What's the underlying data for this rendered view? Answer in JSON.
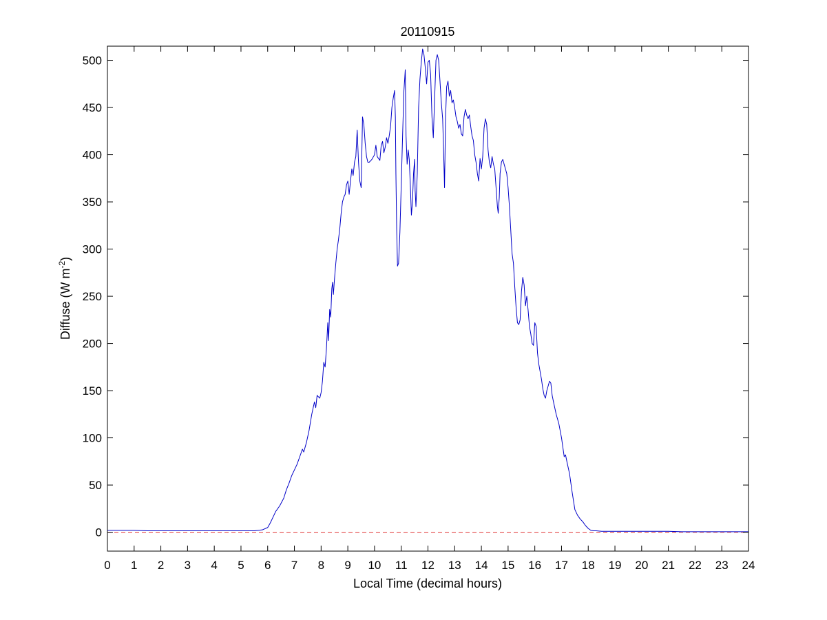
{
  "chart_data": {
    "type": "line",
    "title": "20110915",
    "xlabel": "Local Time (decimal hours)",
    "ylabel": {
      "text": "Diffuse (W m",
      "superscript": "-2",
      "suffix": ")"
    },
    "xlim": [
      0,
      24
    ],
    "ylim": [
      -20,
      515
    ],
    "xticks": [
      0,
      1,
      2,
      3,
      4,
      5,
      6,
      7,
      8,
      9,
      10,
      11,
      12,
      13,
      14,
      15,
      16,
      17,
      18,
      19,
      20,
      21,
      22,
      23,
      24
    ],
    "yticks": [
      0,
      50,
      100,
      150,
      200,
      250,
      300,
      350,
      400,
      450,
      500
    ],
    "grid": false,
    "legend": "none",
    "reference_line": {
      "y": 0,
      "style": "dashed",
      "color": "#e03030"
    },
    "series": [
      {
        "color": "#0000c8",
        "points": [
          [
            0.0,
            2
          ],
          [
            0.5,
            2
          ],
          [
            1.0,
            2
          ],
          [
            1.5,
            1.5
          ],
          [
            2.0,
            1.5
          ],
          [
            2.5,
            1.5
          ],
          [
            3.0,
            1.5
          ],
          [
            3.5,
            1.5
          ],
          [
            4.0,
            1.5
          ],
          [
            4.5,
            1.5
          ],
          [
            5.0,
            1.5
          ],
          [
            5.5,
            1.5
          ],
          [
            5.8,
            2.5
          ],
          [
            6.0,
            5
          ],
          [
            6.1,
            10
          ],
          [
            6.2,
            16
          ],
          [
            6.3,
            22
          ],
          [
            6.45,
            28
          ],
          [
            6.6,
            36
          ],
          [
            6.7,
            45
          ],
          [
            6.8,
            52
          ],
          [
            6.9,
            60
          ],
          [
            7.0,
            66
          ],
          [
            7.1,
            72
          ],
          [
            7.2,
            80
          ],
          [
            7.3,
            88
          ],
          [
            7.35,
            85
          ],
          [
            7.45,
            95
          ],
          [
            7.55,
            108
          ],
          [
            7.65,
            125
          ],
          [
            7.75,
            138
          ],
          [
            7.8,
            132
          ],
          [
            7.85,
            145
          ],
          [
            7.95,
            142
          ],
          [
            8.0,
            148
          ],
          [
            8.05,
            160
          ],
          [
            8.1,
            180
          ],
          [
            8.15,
            175
          ],
          [
            8.2,
            195
          ],
          [
            8.25,
            222
          ],
          [
            8.28,
            203
          ],
          [
            8.32,
            236
          ],
          [
            8.36,
            228
          ],
          [
            8.4,
            258
          ],
          [
            8.43,
            265
          ],
          [
            8.46,
            252
          ],
          [
            8.5,
            268
          ],
          [
            8.55,
            285
          ],
          [
            8.6,
            300
          ],
          [
            8.65,
            310
          ],
          [
            8.7,
            322
          ],
          [
            8.75,
            338
          ],
          [
            8.8,
            350
          ],
          [
            8.85,
            355
          ],
          [
            8.9,
            358
          ],
          [
            8.95,
            368
          ],
          [
            9.0,
            372
          ],
          [
            9.05,
            358
          ],
          [
            9.1,
            372
          ],
          [
            9.15,
            385
          ],
          [
            9.2,
            378
          ],
          [
            9.25,
            392
          ],
          [
            9.3,
            398
          ],
          [
            9.35,
            426
          ],
          [
            9.4,
            392
          ],
          [
            9.45,
            372
          ],
          [
            9.5,
            365
          ],
          [
            9.55,
            440
          ],
          [
            9.6,
            432
          ],
          [
            9.65,
            412
          ],
          [
            9.7,
            398
          ],
          [
            9.75,
            392
          ],
          [
            9.8,
            392
          ],
          [
            9.9,
            395
          ],
          [
            10.0,
            400
          ],
          [
            10.05,
            410
          ],
          [
            10.1,
            398
          ],
          [
            10.2,
            394
          ],
          [
            10.25,
            410
          ],
          [
            10.3,
            414
          ],
          [
            10.35,
            402
          ],
          [
            10.4,
            408
          ],
          [
            10.45,
            418
          ],
          [
            10.5,
            412
          ],
          [
            10.55,
            420
          ],
          [
            10.6,
            430
          ],
          [
            10.65,
            450
          ],
          [
            10.7,
            460
          ],
          [
            10.75,
            468
          ],
          [
            10.78,
            440
          ],
          [
            10.8,
            380
          ],
          [
            10.83,
            320
          ],
          [
            10.86,
            282
          ],
          [
            10.9,
            285
          ],
          [
            10.95,
            318
          ],
          [
            11.0,
            368
          ],
          [
            11.05,
            420
          ],
          [
            11.1,
            468
          ],
          [
            11.15,
            490
          ],
          [
            11.18,
            420
          ],
          [
            11.22,
            390
          ],
          [
            11.26,
            405
          ],
          [
            11.3,
            395
          ],
          [
            11.35,
            360
          ],
          [
            11.38,
            336
          ],
          [
            11.42,
            350
          ],
          [
            11.46,
            380
          ],
          [
            11.5,
            395
          ],
          [
            11.52,
            362
          ],
          [
            11.55,
            345
          ],
          [
            11.6,
            380
          ],
          [
            11.65,
            450
          ],
          [
            11.7,
            480
          ],
          [
            11.75,
            498
          ],
          [
            11.8,
            512
          ],
          [
            11.85,
            506
          ],
          [
            11.9,
            492
          ],
          [
            11.95,
            475
          ],
          [
            12.0,
            498
          ],
          [
            12.05,
            500
          ],
          [
            12.1,
            485
          ],
          [
            12.15,
            440
          ],
          [
            12.2,
            418
          ],
          [
            12.25,
            460
          ],
          [
            12.3,
            500
          ],
          [
            12.35,
            506
          ],
          [
            12.4,
            500
          ],
          [
            12.45,
            478
          ],
          [
            12.5,
            455
          ],
          [
            12.55,
            438
          ],
          [
            12.58,
            410
          ],
          [
            12.62,
            365
          ],
          [
            12.66,
            440
          ],
          [
            12.7,
            472
          ],
          [
            12.75,
            478
          ],
          [
            12.8,
            462
          ],
          [
            12.85,
            468
          ],
          [
            12.9,
            455
          ],
          [
            12.95,
            458
          ],
          [
            13.0,
            450
          ],
          [
            13.05,
            440
          ],
          [
            13.1,
            435
          ],
          [
            13.15,
            428
          ],
          [
            13.2,
            432
          ],
          [
            13.25,
            422
          ],
          [
            13.3,
            420
          ],
          [
            13.35,
            440
          ],
          [
            13.4,
            448
          ],
          [
            13.45,
            442
          ],
          [
            13.5,
            438
          ],
          [
            13.55,
            442
          ],
          [
            13.6,
            430
          ],
          [
            13.65,
            420
          ],
          [
            13.7,
            415
          ],
          [
            13.75,
            400
          ],
          [
            13.8,
            392
          ],
          [
            13.85,
            380
          ],
          [
            13.9,
            372
          ],
          [
            13.95,
            396
          ],
          [
            14.0,
            385
          ],
          [
            14.05,
            398
          ],
          [
            14.1,
            428
          ],
          [
            14.15,
            438
          ],
          [
            14.2,
            432
          ],
          [
            14.25,
            405
          ],
          [
            14.3,
            392
          ],
          [
            14.35,
            386
          ],
          [
            14.4,
            398
          ],
          [
            14.45,
            390
          ],
          [
            14.5,
            385
          ],
          [
            14.55,
            365
          ],
          [
            14.6,
            345
          ],
          [
            14.63,
            338
          ],
          [
            14.67,
            355
          ],
          [
            14.7,
            380
          ],
          [
            14.75,
            392
          ],
          [
            14.8,
            395
          ],
          [
            14.85,
            390
          ],
          [
            14.9,
            385
          ],
          [
            14.95,
            380
          ],
          [
            15.0,
            365
          ],
          [
            15.05,
            345
          ],
          [
            15.1,
            320
          ],
          [
            15.15,
            295
          ],
          [
            15.2,
            285
          ],
          [
            15.25,
            260
          ],
          [
            15.3,
            238
          ],
          [
            15.35,
            222
          ],
          [
            15.4,
            220
          ],
          [
            15.45,
            225
          ],
          [
            15.5,
            255
          ],
          [
            15.55,
            270
          ],
          [
            15.6,
            262
          ],
          [
            15.65,
            240
          ],
          [
            15.7,
            250
          ],
          [
            15.75,
            235
          ],
          [
            15.8,
            218
          ],
          [
            15.85,
            210
          ],
          [
            15.9,
            200
          ],
          [
            15.95,
            198
          ],
          [
            16.0,
            222
          ],
          [
            16.05,
            218
          ],
          [
            16.1,
            190
          ],
          [
            16.15,
            178
          ],
          [
            16.2,
            170
          ],
          [
            16.25,
            162
          ],
          [
            16.3,
            152
          ],
          [
            16.35,
            145
          ],
          [
            16.4,
            142
          ],
          [
            16.45,
            150
          ],
          [
            16.5,
            155
          ],
          [
            16.55,
            160
          ],
          [
            16.6,
            158
          ],
          [
            16.65,
            145
          ],
          [
            16.7,
            138
          ],
          [
            16.8,
            125
          ],
          [
            16.9,
            115
          ],
          [
            17.0,
            100
          ],
          [
            17.05,
            90
          ],
          [
            17.1,
            80
          ],
          [
            17.15,
            82
          ],
          [
            17.2,
            75
          ],
          [
            17.3,
            62
          ],
          [
            17.4,
            42
          ],
          [
            17.5,
            24
          ],
          [
            17.6,
            18
          ],
          [
            17.7,
            14
          ],
          [
            17.8,
            11
          ],
          [
            17.9,
            7
          ],
          [
            18.0,
            4
          ],
          [
            18.1,
            2
          ],
          [
            18.2,
            1.5
          ],
          [
            18.3,
            1.5
          ],
          [
            18.5,
            1
          ],
          [
            19.0,
            1
          ],
          [
            19.5,
            1
          ],
          [
            20.0,
            1
          ],
          [
            20.5,
            1
          ],
          [
            21.0,
            1
          ],
          [
            21.5,
            0.5
          ],
          [
            22.0,
            0.5
          ],
          [
            22.5,
            0.5
          ],
          [
            23.0,
            0.5
          ],
          [
            23.5,
            0.5
          ],
          [
            24.0,
            0.5
          ]
        ]
      }
    ]
  }
}
